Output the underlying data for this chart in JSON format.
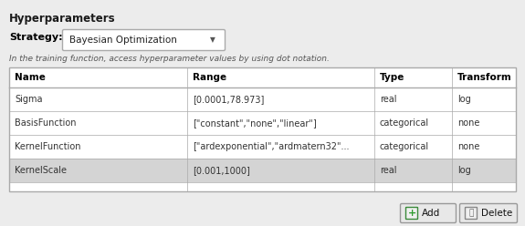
{
  "title": "Hyperparameters",
  "strategy_label": "Strategy:",
  "strategy_value": "Bayesian Optimization",
  "info_text": "In the training function, access hyperparameter values by using dot notation.",
  "col_headers": [
    "Name",
    "Range",
    "Type",
    "Transform"
  ],
  "rows": [
    [
      "Sigma",
      "[0.0001,78.973]",
      "real",
      "log"
    ],
    [
      "BasisFunction",
      "[\"constant\",\"none\",\"linear\"]",
      "categorical",
      "none"
    ],
    [
      "KernelFunction",
      "[\"ardexponential\",\"ardmatern32\"...",
      "categorical",
      "none"
    ],
    [
      "KernelScale",
      "[0.001,1000]",
      "real",
      "log"
    ]
  ],
  "row_highlighted": [
    3
  ],
  "bg_color": "#ececec",
  "table_header_color": "#ffffff",
  "row_alt_color": "#d4d4d4",
  "row_normal_color": "#ffffff",
  "border_color": "#aaaaaa",
  "header_text_color": "#000000",
  "cell_text_color": "#333333",
  "title_color": "#1a1a1a",
  "info_color": "#555555",
  "dropdown_border": "#aaaaaa",
  "button_bg": "#e8e8e8"
}
